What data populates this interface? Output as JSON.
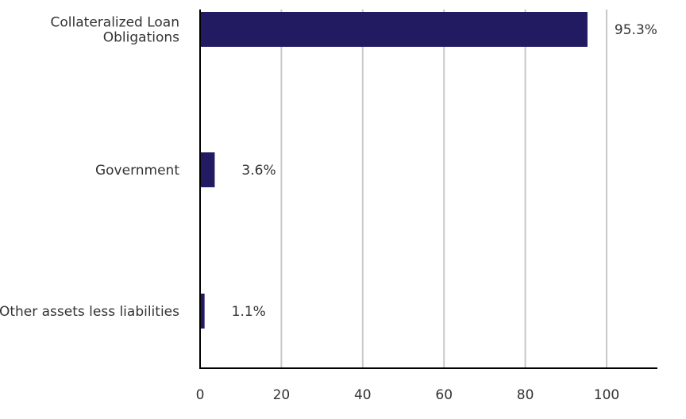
{
  "chart_data": {
    "type": "bar",
    "orientation": "horizontal",
    "categories": [
      "Collateralized Loan Obligations",
      "Government",
      "Other assets less liabilities"
    ],
    "category_lines": [
      [
        "Collateralized Loan",
        "Obligations"
      ],
      [
        "Government"
      ],
      [
        "Other assets less liabilities"
      ]
    ],
    "values": [
      95.3,
      3.6,
      1.1
    ],
    "data_labels": [
      "95.3%",
      "3.6%",
      "1.1%"
    ],
    "title": "",
    "xlabel": "",
    "ylabel": "",
    "xlim": [
      0,
      112
    ],
    "xticks": [
      0,
      20,
      40,
      60,
      80,
      100
    ],
    "xtick_labels": [
      "0",
      "20",
      "40",
      "60",
      "80",
      "100"
    ],
    "grid": true,
    "legend": "none",
    "colors": {
      "bar": "#221b62",
      "grid": "#c8c8c8",
      "axis": "#000000",
      "text": "#333333"
    }
  }
}
